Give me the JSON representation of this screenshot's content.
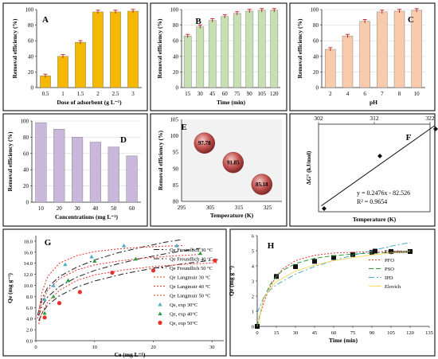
{
  "chart_data": [
    {
      "panel": "A",
      "type": "bar",
      "xlabel": "Dose of adsorbent (g L⁻¹)",
      "ylabel": "Removal efficiency (%)",
      "categories": [
        "0.5",
        "1",
        "1.5",
        "2",
        "2.5",
        "3"
      ],
      "values": [
        15,
        40,
        58,
        97,
        97,
        98
      ],
      "ylim": [
        0,
        100
      ],
      "yticks": [
        0,
        20,
        40,
        60,
        80,
        100
      ],
      "bar_color": "#f5b800",
      "error_bars": true
    },
    {
      "panel": "B",
      "type": "bar",
      "xlabel": "Time (min)",
      "ylabel": "Removal efficiency (%)",
      "categories": [
        "15",
        "30",
        "45",
        "60",
        "75",
        "90",
        "105",
        "120"
      ],
      "values": [
        66,
        78,
        86,
        91,
        95,
        98,
        99,
        99
      ],
      "ylim": [
        0,
        100
      ],
      "yticks": [
        0,
        20,
        40,
        60,
        80,
        100
      ],
      "bar_color": "#c6e0b4",
      "grid": true,
      "error_bars": true
    },
    {
      "panel": "C",
      "type": "bar",
      "xlabel": "pH",
      "ylabel": "Removal efficiency (%)",
      "categories": [
        "2",
        "4",
        "6",
        "7",
        "8",
        "10"
      ],
      "values": [
        49,
        66,
        85,
        97,
        98,
        99
      ],
      "ylim": [
        0,
        100
      ],
      "yticks": [
        0,
        20,
        40,
        60,
        80,
        100
      ],
      "bar_color": "#f8cbad",
      "grid": true,
      "error_bars": true
    },
    {
      "panel": "D",
      "type": "bar",
      "xlabel": "Concentrations (mg L⁻¹)",
      "ylabel": "Removal efficiency (%)",
      "categories": [
        "10",
        "20",
        "30",
        "40",
        "50",
        "60"
      ],
      "values": [
        98,
        90,
        80,
        74,
        68,
        57
      ],
      "ylim": [
        0,
        100
      ],
      "yticks": [
        0,
        20,
        40,
        60,
        80,
        100
      ],
      "bar_color": "#c9b8dc",
      "grid": true
    },
    {
      "panel": "E",
      "type": "scatter",
      "xlabel": "Temperature (K)",
      "ylabel": "Removal efficiency (%)",
      "xlim": [
        295,
        330
      ],
      "ylim": [
        80,
        105
      ],
      "xticks": [
        295,
        305,
        315,
        325
      ],
      "yticks": [
        80,
        85,
        90,
        95,
        100,
        105
      ],
      "points": [
        {
          "x": 303,
          "y": 97.78,
          "label": "97.78"
        },
        {
          "x": 313,
          "y": 91.85,
          "label": "91.85"
        },
        {
          "x": 323,
          "y": 85.18,
          "label": "85.18"
        }
      ],
      "marker_color": "#c0504d",
      "background": "#f2f2f2"
    },
    {
      "panel": "F",
      "type": "scatter",
      "xlabel": "Temperature (K)",
      "ylabel": "ΔG° (kJ/mol)",
      "xlim": [
        302,
        322
      ],
      "ylim": [
        -8,
        -2.5
      ],
      "xticks": [
        302,
        312,
        322
      ],
      "points": [
        {
          "x": 303,
          "y": -7.8
        },
        {
          "x": 313,
          "y": -4.5
        },
        {
          "x": 323,
          "y": -2.8
        }
      ],
      "trendline": {
        "slope": 0.2476,
        "intercept": -82.526
      },
      "equation": "y = 0.2476x - 82.526",
      "r2": "R² = 0.9654"
    },
    {
      "panel": "G",
      "type": "line",
      "xlabel": "Ce (mg L⁻¹)",
      "ylabel": "Qe (mg g⁻¹)",
      "xlim": [
        0,
        32
      ],
      "ylim": [
        0,
        19
      ],
      "xticks": [
        0,
        10,
        20,
        30
      ],
      "yticks": [
        0,
        2,
        4,
        6,
        8,
        10,
        12,
        14,
        16,
        18
      ],
      "yticklabels": [
        "0.0",
        "2.0",
        "4.0",
        "6.0",
        "8.0",
        "10.0",
        "12.0",
        "14.0",
        "16.0",
        "18.0"
      ],
      "legend": "right",
      "series": [
        {
          "name": "Qe Freundlich 30 °C",
          "style": "dashdot",
          "color": "#222222",
          "x": [
            0.3,
            1,
            2,
            4,
            7,
            10,
            14,
            18,
            22,
            25
          ],
          "y": [
            4.6,
            7.5,
            9.6,
            11.6,
            13.3,
            14.6,
            15.9,
            16.9,
            17.8,
            18.3
          ]
        },
        {
          "name": "Qe Freundlich 40 °C",
          "style": "dashdot",
          "color": "#222222",
          "x": [
            0.5,
            1,
            2,
            4,
            7,
            10,
            14,
            18,
            23,
            28
          ],
          "y": [
            4.5,
            6.2,
            7.9,
            9.8,
            11.5,
            12.7,
            13.9,
            14.9,
            15.9,
            16.7
          ]
        },
        {
          "name": "Qe Freundlich 50 °C",
          "style": "dashdot",
          "color": "#222222",
          "x": [
            0.5,
            1,
            2,
            4,
            7,
            10,
            15,
            20,
            25,
            31
          ],
          "y": [
            3.6,
            4.9,
            6.4,
            8.1,
            9.7,
            10.8,
            12.1,
            13.1,
            13.9,
            14.7
          ]
        },
        {
          "name": "Qe Langmuir 30 °C",
          "style": "dotted",
          "color": "#e8302a",
          "x": [
            0.3,
            1,
            2,
            4,
            7,
            10,
            14,
            18,
            22,
            25
          ],
          "y": [
            4.0,
            8.6,
            11.6,
            14.0,
            15.4,
            16.1,
            16.6,
            16.9,
            17.1,
            17.2
          ]
        },
        {
          "name": "Qe Langmuir 40 °C",
          "style": "dotted",
          "color": "#e8302a",
          "x": [
            0.5,
            1,
            2,
            4,
            7,
            10,
            14,
            18,
            23,
            28
          ],
          "y": [
            4.6,
            6.9,
            9.1,
            11.2,
            12.8,
            13.7,
            14.4,
            14.9,
            15.3,
            15.6
          ]
        },
        {
          "name": "Qe Langmuir 50 °C",
          "style": "dotted",
          "color": "#e8302a",
          "x": [
            0.5,
            1,
            2,
            4,
            7,
            10,
            15,
            20,
            25,
            31
          ],
          "y": [
            3.0,
            4.9,
            7.0,
            9.1,
            10.9,
            11.9,
            12.8,
            13.4,
            13.8,
            14.1
          ]
        },
        {
          "name": "Qe, exp 30°C",
          "style": "marker",
          "marker": "triangle",
          "color": "#4bacc6",
          "x": [
            1.5,
            3,
            5,
            9.5,
            15,
            24
          ],
          "y": [
            7.5,
            10.0,
            13.8,
            15.2,
            17.2,
            17.2
          ]
        },
        {
          "name": "Qe, exp 40°C",
          "style": "marker",
          "marker": "triangle",
          "color": "#2a9d3a",
          "x": [
            1.5,
            3,
            5.5,
            10,
            17,
            28
          ],
          "y": [
            5.0,
            8.0,
            10.9,
            14.4,
            14.8,
            15.8
          ]
        },
        {
          "name": "Qe, exp 50°C",
          "style": "marker",
          "marker": "circle",
          "color": "#e8302a",
          "x": [
            1.5,
            4,
            7.5,
            13,
            20,
            30.5
          ],
          "y": [
            4.2,
            6.8,
            8.8,
            12.3,
            12.7,
            14.5
          ]
        }
      ]
    },
    {
      "panel": "H",
      "type": "line",
      "xlabel": "Time (min)",
      "ylabel": "Qe (mg g⁻¹)",
      "xlim": [
        0,
        135
      ],
      "ylim": [
        0,
        6
      ],
      "xticks": [
        0,
        15,
        30,
        45,
        60,
        75,
        90,
        105,
        120,
        135
      ],
      "yticks": [
        0,
        1,
        2,
        3,
        4,
        5,
        6
      ],
      "legend": "right",
      "series": [
        {
          "name": "Experimental",
          "style": "marker",
          "marker": "square",
          "color": "#111111",
          "x": [
            0,
            15,
            30,
            45,
            60,
            75,
            90,
            105,
            120
          ],
          "y": [
            0,
            3.3,
            3.95,
            4.3,
            4.55,
            4.75,
            4.9,
            4.95,
            4.95
          ]
        },
        {
          "name": "PFO",
          "style": "dotted",
          "color": "#e8302a",
          "x": [
            0,
            5,
            10,
            15,
            20,
            30,
            45,
            60,
            75,
            90,
            105,
            120
          ],
          "y": [
            0,
            1.55,
            2.6,
            3.3,
            3.8,
            4.35,
            4.7,
            4.85,
            4.9,
            4.93,
            4.95,
            4.95
          ]
        },
        {
          "name": "PSO",
          "style": "dashed",
          "color": "#2a9d3a",
          "x": [
            0,
            5,
            10,
            15,
            20,
            30,
            45,
            60,
            75,
            90,
            105,
            120
          ],
          "y": [
            0,
            1.8,
            2.75,
            3.3,
            3.7,
            4.15,
            4.5,
            4.68,
            4.78,
            4.85,
            4.9,
            4.94
          ]
        },
        {
          "name": "IPD",
          "style": "dashdot",
          "color": "#4bacc6",
          "x": [
            0,
            5,
            10,
            15,
            30,
            45,
            60,
            75,
            90,
            105,
            120
          ],
          "y": [
            0.9,
            1.9,
            2.4,
            2.75,
            3.45,
            3.95,
            4.35,
            4.7,
            5.0,
            5.3,
            5.55
          ]
        },
        {
          "name": "Elovich",
          "style": "solid",
          "color": "#ffd966",
          "x": [
            1,
            5,
            10,
            15,
            30,
            45,
            60,
            75,
            90,
            105,
            120
          ],
          "y": [
            0.2,
            1.8,
            2.5,
            2.95,
            3.65,
            4.05,
            4.35,
            4.55,
            4.72,
            4.86,
            4.98
          ]
        }
      ]
    }
  ]
}
